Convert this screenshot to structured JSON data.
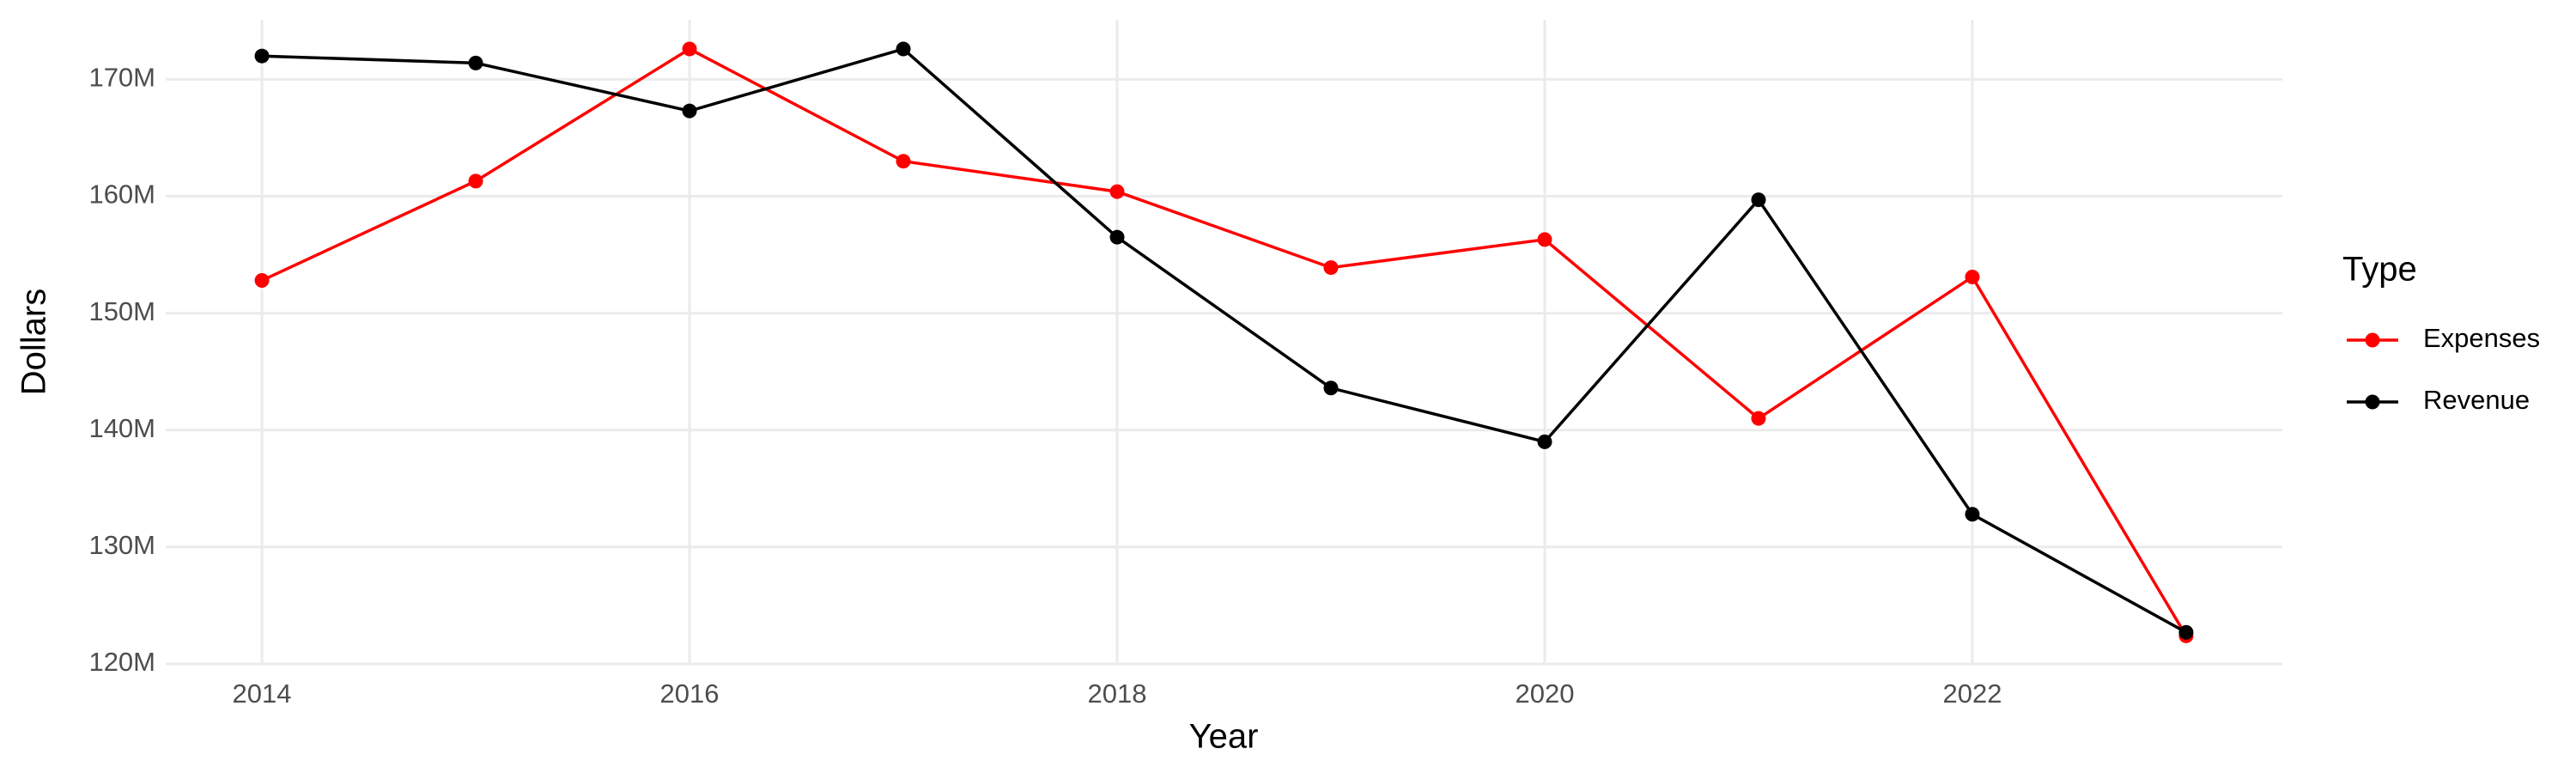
{
  "chart_data": {
    "type": "line",
    "x_label": "Year",
    "y_label": "Dollars",
    "legend_title": "Type",
    "legend_position": "right",
    "grid": true,
    "x": [
      2014,
      2015,
      2016,
      2017,
      2018,
      2019,
      2020,
      2021,
      2022,
      2023
    ],
    "series": [
      {
        "name": "Expenses",
        "color": "#ff0000",
        "values": [
          152800000,
          161300000,
          172600000,
          163000000,
          160400000,
          153900000,
          156300000,
          141000000,
          153100000,
          122400000
        ]
      },
      {
        "name": "Revenue",
        "color": "#000000",
        "values": [
          172000000,
          171400000,
          167300000,
          172600000,
          156500000,
          143600000,
          139000000,
          159700000,
          132800000,
          122700000
        ]
      }
    ],
    "xlim": [
      2013.55,
      2023.45
    ],
    "xticks": [
      2014,
      2016,
      2018,
      2020,
      2022
    ],
    "ylim": [
      120000000,
      175100000
    ],
    "yticks": [
      {
        "value": 120000000,
        "label": "120M"
      },
      {
        "value": 130000000,
        "label": "130M"
      },
      {
        "value": 140000000,
        "label": "140M"
      },
      {
        "value": 150000000,
        "label": "150M"
      },
      {
        "value": 160000000,
        "label": "160M"
      },
      {
        "value": 170000000,
        "label": "170M"
      }
    ]
  }
}
